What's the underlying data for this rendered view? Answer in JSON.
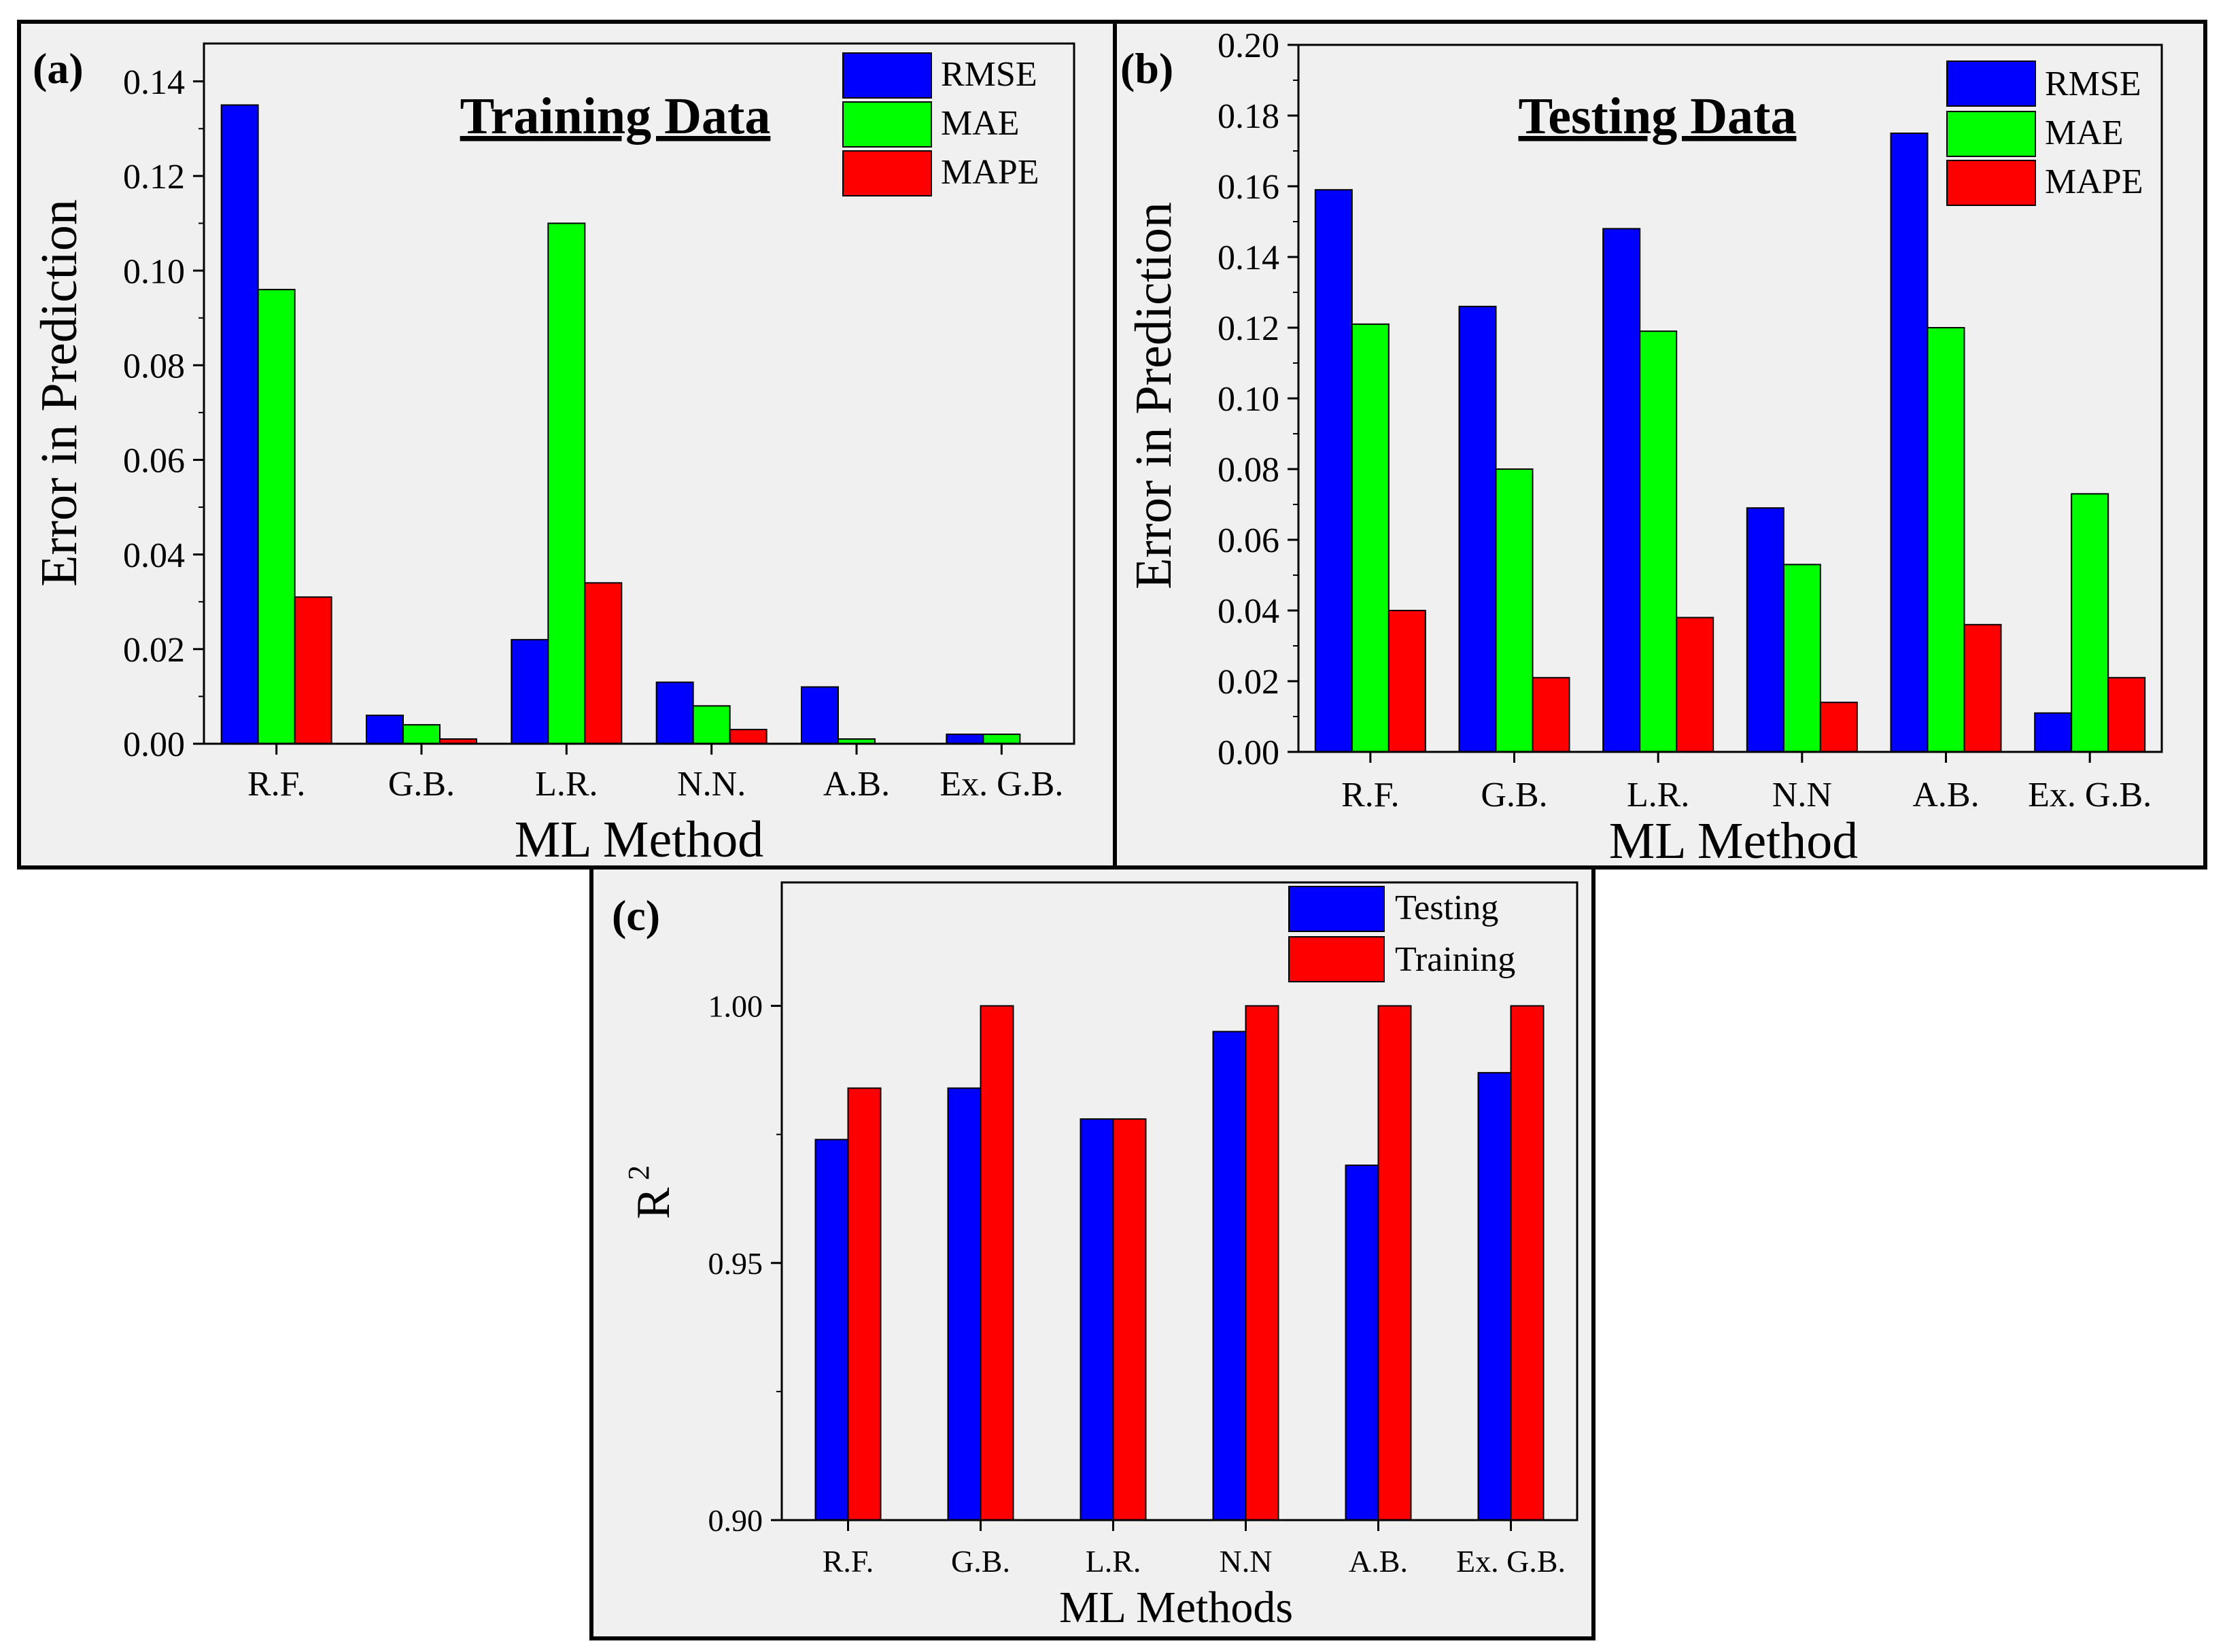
{
  "colors": {
    "RMSE": "#0000ff",
    "MAE": "#00ff00",
    "MAPE": "#ff0000",
    "Testing": "#0000ff",
    "Training": "#ff0000",
    "panel_bg": "#f0f0f0",
    "frame": "#000000"
  },
  "chart_data": [
    {
      "panel_label": "(a)",
      "type": "bar",
      "title": "Training Data",
      "xlabel": "ML Method",
      "ylabel": "Error in Prediction",
      "ylim": [
        0,
        0.148
      ],
      "yticks": [
        "0.00",
        "0.02",
        "0.04",
        "0.06",
        "0.08",
        "0.10",
        "0.12",
        "0.14"
      ],
      "categories": [
        "R.F.",
        "G.B.",
        "L.R.",
        "N.N.",
        "A.B.",
        "Ex. G.B."
      ],
      "legend_position": "top-right",
      "series": [
        {
          "name": "RMSE",
          "values": [
            0.135,
            0.006,
            0.022,
            0.013,
            0.012,
            0.002
          ]
        },
        {
          "name": "MAE",
          "values": [
            0.096,
            0.004,
            0.11,
            0.008,
            0.001,
            0.002
          ]
        },
        {
          "name": "MAPE",
          "values": [
            0.031,
            0.001,
            0.034,
            0.003,
            0.0,
            0.0
          ]
        }
      ]
    },
    {
      "panel_label": "(b)",
      "type": "bar",
      "title": "Testing Data",
      "xlabel": "ML Method",
      "ylabel": "Error in Prediction",
      "ylim": [
        0,
        0.2
      ],
      "yticks": [
        "0.00",
        "0.02",
        "0.04",
        "0.06",
        "0.08",
        "0.10",
        "0.12",
        "0.14",
        "0.16",
        "0.18",
        "0.20"
      ],
      "categories": [
        "R.F.",
        "G.B.",
        "L.R.",
        "N.N",
        "A.B.",
        "Ex. G.B."
      ],
      "legend_position": "top-right",
      "series": [
        {
          "name": "RMSE",
          "values": [
            0.159,
            0.126,
            0.148,
            0.069,
            0.175,
            0.011
          ]
        },
        {
          "name": "MAE",
          "values": [
            0.121,
            0.08,
            0.119,
            0.053,
            0.12,
            0.073
          ]
        },
        {
          "name": "MAPE",
          "values": [
            0.04,
            0.021,
            0.038,
            0.014,
            0.036,
            0.021
          ]
        }
      ]
    },
    {
      "panel_label": "(c)",
      "type": "bar",
      "title": "",
      "xlabel": "ML Methods",
      "ylabel": "R",
      "ylabel_sup": "2",
      "ylim": [
        0.9,
        1.024
      ],
      "yticks": [
        "0.90",
        "0.95",
        "1.00"
      ],
      "categories": [
        "R.F.",
        "G.B.",
        "L.R.",
        "N.N",
        "A.B.",
        "Ex. G.B."
      ],
      "legend_position": "top-right",
      "series": [
        {
          "name": "Testing",
          "values": [
            0.974,
            0.984,
            0.978,
            0.995,
            0.969,
            0.987
          ]
        },
        {
          "name": "Training",
          "values": [
            0.984,
            1.0,
            0.978,
            1.0,
            1.0,
            1.0
          ]
        }
      ]
    }
  ]
}
